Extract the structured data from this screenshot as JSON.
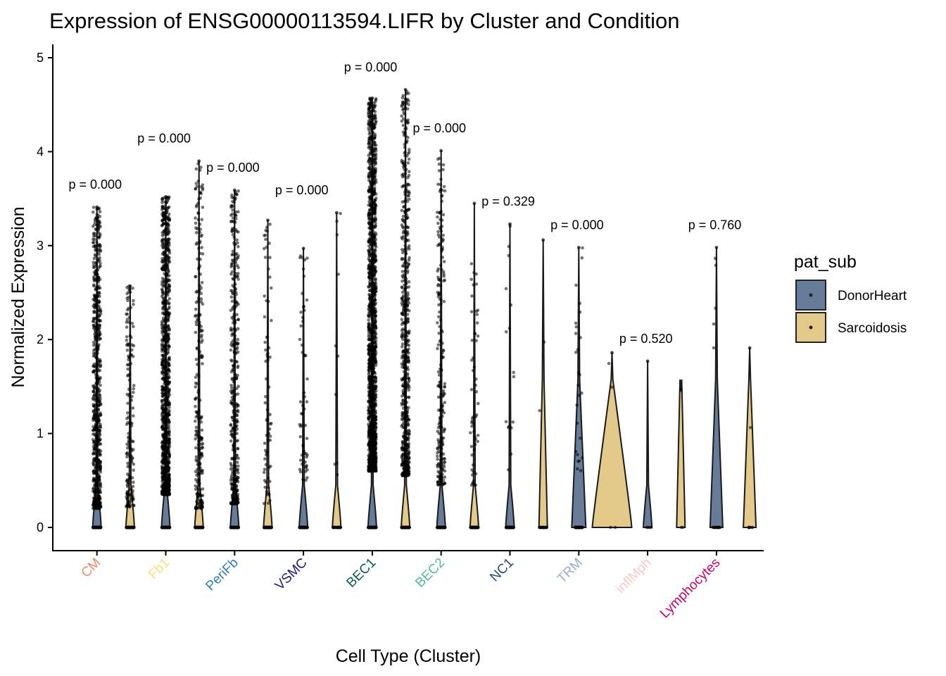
{
  "chart_data": {
    "type": "violin",
    "title": "Expression of ENSG00000113594.LIFR by Cluster and Condition",
    "xlabel": "Cell Type (Cluster)",
    "ylabel": "Normalized Expression",
    "ylim": [
      -0.25,
      5.1
    ],
    "yticks": [
      0,
      1,
      2,
      3,
      4,
      5
    ],
    "categories": [
      "CM",
      "Fb1",
      "PeriFb",
      "VSMC",
      "BEC1",
      "BEC2",
      "NC1",
      "TRM",
      "inflMph",
      "Lymphocytes"
    ],
    "category_colors": [
      "#EE8866",
      "#FFDD77",
      "#2C7FB8",
      "#1B1B7A",
      "#0B5D4E",
      "#55BB99",
      "#2E4A6B",
      "#99AACC",
      "#F6C9C9",
      "#CC0066"
    ],
    "legend": {
      "title": "pat_sub",
      "placement": "right",
      "entries": [
        {
          "name": "DonorHeart",
          "color": "#667C99"
        },
        {
          "name": "Sarcoidosis",
          "color": "#E3C98A"
        }
      ]
    },
    "series": [
      {
        "name": "DonorHeart",
        "max": [
          3.41,
          3.52,
          3.59,
          2.97,
          4.57,
          4.01,
          3.23,
          2.98,
          1.77,
          2.98
        ]
      },
      {
        "name": "Sarcoidosis",
        "max": [
          2.57,
          3.9,
          3.27,
          3.35,
          4.66,
          3.45,
          3.06,
          1.86,
          1.46,
          1.91
        ]
      }
    ],
    "p_values": [
      "p = 0.000",
      "p = 0.000",
      "p = 0.000",
      "p = 0.000",
      "p = 0.000",
      "p = 0.000",
      "p = 0.329",
      "p = 0.000",
      "p = 0.520",
      "p = 0.760"
    ],
    "grid": false
  }
}
